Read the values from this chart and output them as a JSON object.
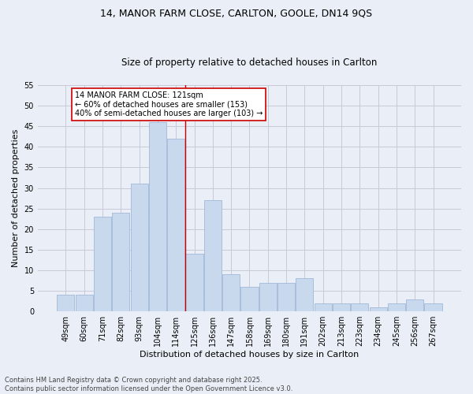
{
  "title_line1": "14, MANOR FARM CLOSE, CARLTON, GOOLE, DN14 9QS",
  "title_line2": "Size of property relative to detached houses in Carlton",
  "xlabel": "Distribution of detached houses by size in Carlton",
  "ylabel": "Number of detached properties",
  "categories": [
    "49sqm",
    "60sqm",
    "71sqm",
    "82sqm",
    "93sqm",
    "104sqm",
    "114sqm",
    "125sqm",
    "136sqm",
    "147sqm",
    "158sqm",
    "169sqm",
    "180sqm",
    "191sqm",
    "202sqm",
    "213sqm",
    "223sqm",
    "234sqm",
    "245sqm",
    "256sqm",
    "267sqm"
  ],
  "values": [
    4,
    4,
    23,
    24,
    31,
    46,
    42,
    14,
    27,
    9,
    6,
    7,
    7,
    8,
    2,
    2,
    2,
    1,
    2,
    3,
    2
  ],
  "bar_color": "#c9d9ed",
  "bar_edge_color": "#a0b8d8",
  "grid_color": "#c8c8d8",
  "background_color": "#eaeff7",
  "property_bar_index": 6,
  "annotation_text": "14 MANOR FARM CLOSE: 121sqm\n← 60% of detached houses are smaller (153)\n40% of semi-detached houses are larger (103) →",
  "annotation_box_color": "#ffffff",
  "annotation_box_edge_color": "#cc0000",
  "red_line_color": "#cc0000",
  "footnote": "Contains HM Land Registry data © Crown copyright and database right 2025.\nContains public sector information licensed under the Open Government Licence v3.0.",
  "ylim": [
    0,
    55
  ],
  "yticks": [
    0,
    5,
    10,
    15,
    20,
    25,
    30,
    35,
    40,
    45,
    50,
    55
  ],
  "title_fontsize": 9,
  "subtitle_fontsize": 8.5,
  "xlabel_fontsize": 8,
  "ylabel_fontsize": 8,
  "tick_fontsize": 7,
  "annotation_fontsize": 7,
  "footnote_fontsize": 6
}
